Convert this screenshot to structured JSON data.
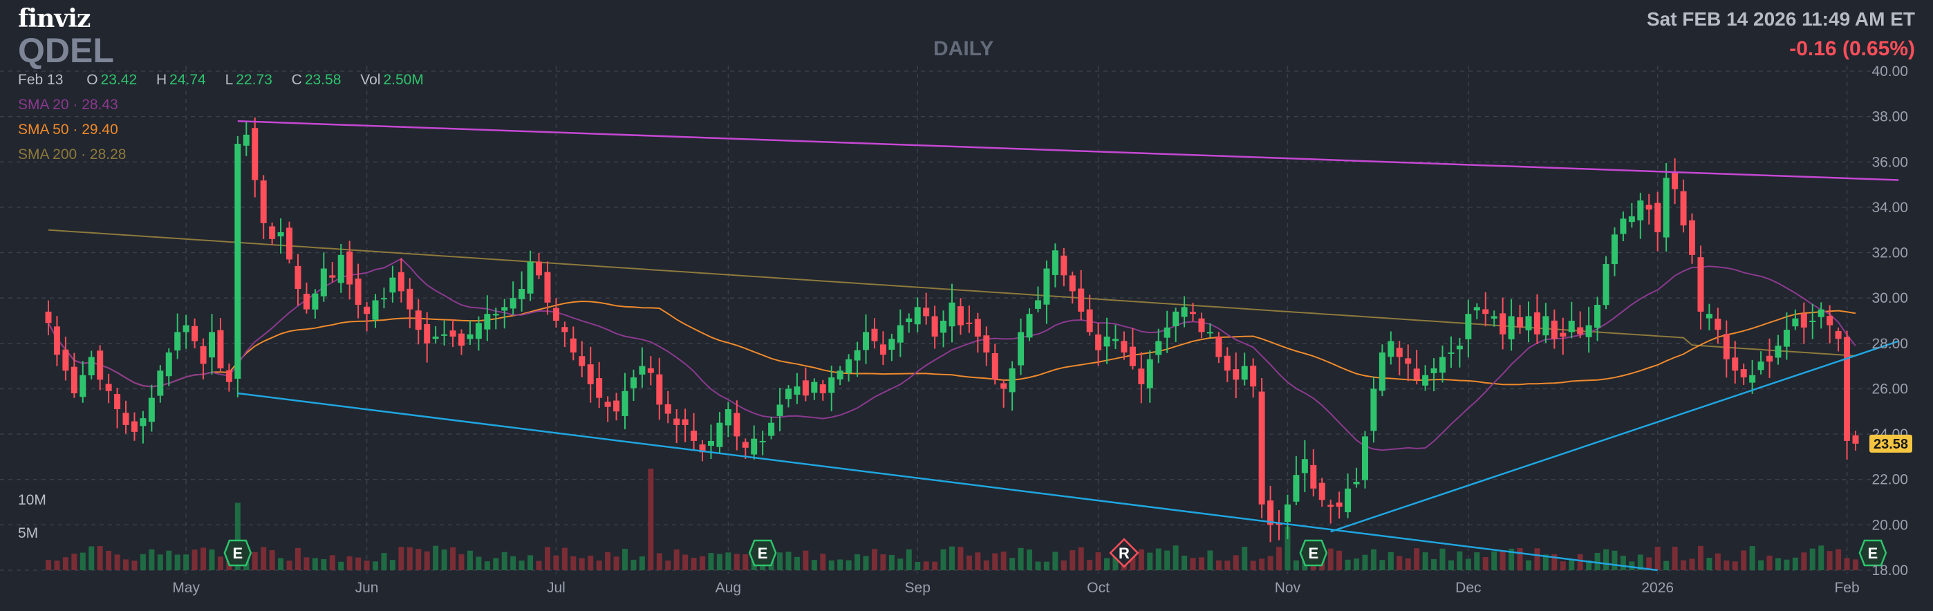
{
  "header": {
    "logo": "finviz",
    "ticker": "QDEL",
    "period": "DAILY",
    "datetime": "Sat FEB 14 2026 11:49 AM ET",
    "change": "-0.16 (0.65%)",
    "date_label": "Feb 13",
    "open_label": "O",
    "open": "23.42",
    "high_label": "H",
    "high": "24.74",
    "low_label": "L",
    "low": "22.73",
    "close_label": "C",
    "close": "23.58",
    "vol_label": "Vol",
    "vol": "2.50M"
  },
  "sma": [
    {
      "label": "SMA 20",
      "value": "28.43",
      "color": "#8b3a8f"
    },
    {
      "label": "SMA 50",
      "value": "29.40",
      "color": "#ef8a2c"
    },
    {
      "label": "SMA 200",
      "value": "28.28",
      "color": "#8d7a3c"
    }
  ],
  "colors": {
    "up": "#2ec46d",
    "down": "#ff4f5a",
    "grid": "#3a3f4b",
    "bg": "#22262f",
    "price_tag": "#f5c542",
    "trend_upper": "#c648d4",
    "trend_lower": "#1fa6e0"
  },
  "chart_data": {
    "type": "candlestick",
    "ylim": [
      18,
      40
    ],
    "y_ticks": [
      "40.00",
      "38.00",
      "36.00",
      "34.00",
      "32.00",
      "30.00",
      "28.00",
      "26.00",
      "24.00",
      "22.00",
      "20.00",
      "18.00"
    ],
    "x_ticks": [
      "May",
      "Jun",
      "Jul",
      "Aug",
      "Sep",
      "Oct",
      "Nov",
      "Dec",
      "2026",
      "Feb"
    ],
    "x_tick_index": [
      16,
      37,
      59,
      79,
      101,
      122,
      144,
      165,
      187,
      209
    ],
    "volume_ticks": [
      "10M",
      "5M"
    ],
    "last_price": "23.58",
    "close": [
      28.9,
      27.5,
      26.8,
      25.8,
      26.6,
      27.4,
      26.4,
      25.9,
      25.1,
      24.4,
      24.1,
      24.7,
      25.6,
      26.8,
      27.6,
      28.5,
      28.8,
      28.1,
      27.1,
      28.5,
      26.9,
      26.3,
      36.8,
      37.2,
      35.2,
      33.3,
      32.6,
      32.9,
      31.7,
      30.4,
      29.5,
      30.2,
      31.3,
      30.9,
      31.9,
      30.6,
      29.7,
      29.3,
      29.9,
      30.0,
      30.9,
      30.3,
      29.5,
      28.6,
      28.0,
      28.3,
      28.4,
      28.3,
      27.9,
      28.4,
      28.9,
      29.3,
      29.3,
      29.6,
      30.0,
      30.4,
      31.6,
      31.0,
      29.8,
      29.0,
      28.5,
      27.6,
      27.0,
      26.2,
      25.6,
      25.2,
      25.0,
      25.9,
      26.5,
      27.0,
      26.7,
      25.3,
      24.9,
      24.4,
      24.4,
      23.7,
      23.2,
      23.7,
      24.5,
      25.1,
      23.9,
      23.4,
      23.8,
      23.7,
      24.5,
      25.3,
      26.0,
      26.1,
      25.7,
      26.3,
      25.8,
      26.5,
      26.8,
      27.3,
      27.7,
      28.5,
      28.1,
      27.5,
      28.2,
      28.8,
      29.1,
      29.6,
      29.2,
      28.3,
      29.0,
      29.8,
      28.8,
      28.9,
      28.3,
      27.6,
      26.4,
      26.0,
      26.9,
      28.5,
      29.3,
      29.9,
      31.3,
      32.1,
      31.0,
      30.3,
      29.4,
      28.5,
      27.7,
      28.3,
      28.2,
      27.6,
      27.0,
      26.2,
      27.3,
      28.1,
      28.7,
      29.4,
      29.6,
      29.3,
      28.5,
      28.5,
      27.4,
      26.8,
      26.4,
      27.0,
      26.1,
      20.9,
      20.0,
      20.0,
      20.9,
      22.2,
      22.9,
      21.6,
      21.1,
      20.8,
      20.8,
      21.6,
      21.9,
      23.9,
      26.0,
      27.6,
      28.1,
      27.4,
      27.1,
      26.4,
      26.6,
      26.9,
      27.4,
      27.6,
      27.9,
      29.3,
      29.6,
      29.3,
      29.2,
      28.4,
      29.2,
      28.7,
      29.2,
      28.4,
      29.2,
      28.2,
      28.3,
      29.0,
      28.4,
      28.8,
      29.7,
      31.5,
      32.8,
      33.5,
      33.6,
      34.3,
      33.9,
      32.9,
      35.3,
      34.8,
      33.2,
      31.9,
      29.4,
      29.3,
      28.6,
      27.3,
      26.8,
      26.5,
      26.6,
      27.2,
      27.2,
      27.9,
      28.6,
      29.1,
      28.7,
      29.0,
      29.5,
      28.8,
      28.2,
      23.7,
      23.58
    ],
    "trendlines": [
      {
        "from": [
          22,
          37.8
        ],
        "to": [
          215,
          35.2
        ]
      },
      {
        "from": [
          22,
          25.8
        ],
        "to": [
          187,
          18.0
        ]
      },
      {
        "from": [
          149,
          19.7
        ],
        "to": [
          215,
          28.1
        ]
      }
    ],
    "event_markers": [
      {
        "index": 22,
        "label": "E"
      },
      {
        "index": 83,
        "label": "E"
      },
      {
        "index": 125,
        "label": "R"
      },
      {
        "index": 147,
        "label": "E"
      },
      {
        "index": 212,
        "label": "E"
      }
    ]
  }
}
